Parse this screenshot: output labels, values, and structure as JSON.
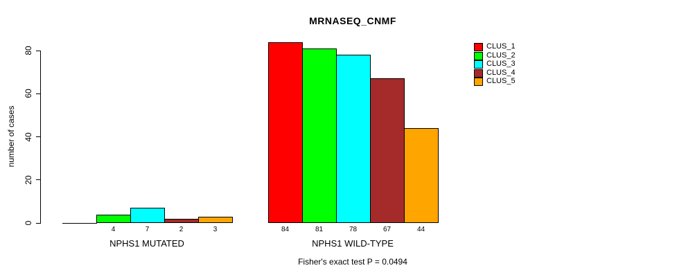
{
  "chart_data": {
    "type": "bar",
    "title": "MRNASEQ_CNMF",
    "ylabel": "number of cases",
    "xlabel": "",
    "ylim": [
      0,
      80
    ],
    "yticks": [
      "0",
      "20",
      "40",
      "60",
      "80"
    ],
    "grid": false,
    "legend_position": "right-outside",
    "categories": [
      "NPHS1 MUTATED",
      "NPHS1 WILD-TYPE"
    ],
    "series": [
      {
        "name": "CLUS_1",
        "color": "#FF0000",
        "values": [
          0,
          84
        ]
      },
      {
        "name": "CLUS_2",
        "color": "#00FF00",
        "values": [
          4,
          81
        ]
      },
      {
        "name": "CLUS_3",
        "color": "#00FFFF",
        "values": [
          7,
          78
        ]
      },
      {
        "name": "CLUS_4",
        "color": "#A52A2A",
        "values": [
          2,
          67
        ]
      },
      {
        "name": "CLUS_5",
        "color": "#FFA500",
        "values": [
          3,
          44
        ]
      }
    ],
    "bar_labels_shown": true,
    "note": "Fisher's exact test P = 0.0494"
  },
  "colors": {
    "axis": "#000000",
    "background": "#FFFFFF"
  }
}
